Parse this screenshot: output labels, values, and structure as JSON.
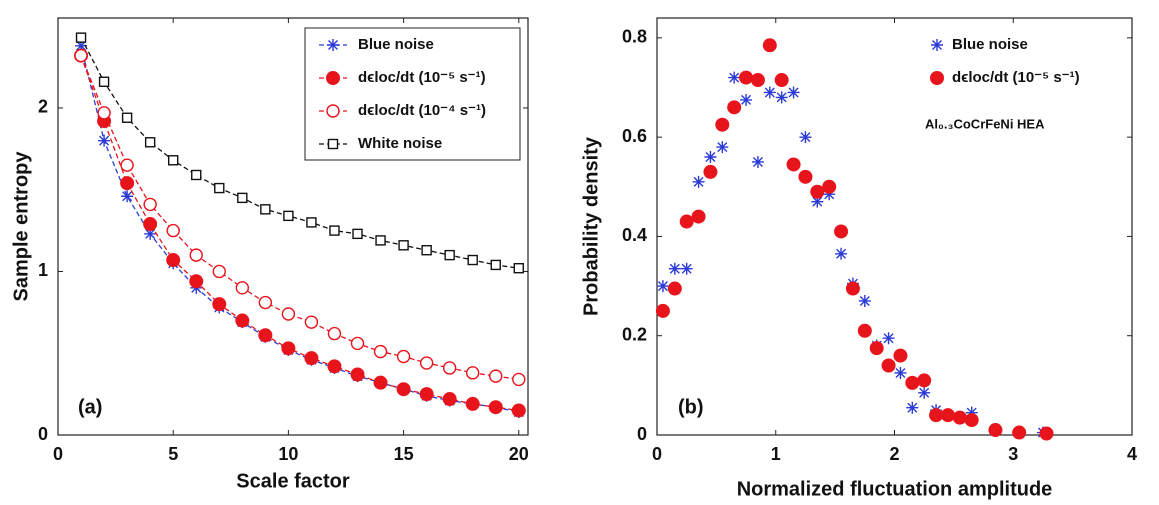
{
  "chart_data": [
    {
      "type": "line",
      "xlabel": "Scale factor",
      "ylabel": "Sample entropy",
      "panel_label": "(a)",
      "x": [
        1,
        2,
        3,
        4,
        5,
        6,
        7,
        8,
        9,
        10,
        11,
        12,
        13,
        14,
        15,
        16,
        17,
        18,
        19,
        20
      ],
      "xlim": [
        0,
        20.4
      ],
      "ylim": [
        0,
        2.55
      ],
      "xticks": [
        0,
        5,
        10,
        15,
        20
      ],
      "yticks": [
        0,
        1,
        2
      ],
      "legend": "upper right",
      "series": [
        {
          "name": "Blue noise",
          "color": "#2b3bd6",
          "marker": "star",
          "values": [
            2.38,
            1.8,
            1.46,
            1.23,
            1.05,
            0.9,
            0.78,
            0.69,
            0.6,
            0.52,
            0.46,
            0.41,
            0.36,
            0.32,
            0.28,
            0.24,
            0.21,
            0.19,
            0.17,
            0.14
          ]
        },
        {
          "name": "dϵloc/dt (10⁻⁵ s⁻¹)",
          "color": "#e8141c",
          "marker": "filled-circle",
          "values": [
            2.32,
            1.92,
            1.54,
            1.29,
            1.07,
            0.94,
            0.8,
            0.7,
            0.61,
            0.53,
            0.47,
            0.42,
            0.37,
            0.32,
            0.28,
            0.25,
            0.22,
            0.19,
            0.17,
            0.15
          ]
        },
        {
          "name": "dϵloc/dt (10⁻⁴ s⁻¹)",
          "color": "#e8141c",
          "marker": "open-circle",
          "values": [
            2.32,
            1.97,
            1.65,
            1.41,
            1.25,
            1.1,
            1.0,
            0.9,
            0.81,
            0.74,
            0.69,
            0.62,
            0.56,
            0.51,
            0.48,
            0.44,
            0.41,
            0.38,
            0.36,
            0.34
          ]
        },
        {
          "name": "White noise",
          "color": "#111111",
          "marker": "square",
          "values": [
            2.43,
            2.16,
            1.94,
            1.79,
            1.68,
            1.59,
            1.51,
            1.45,
            1.38,
            1.34,
            1.3,
            1.25,
            1.23,
            1.19,
            1.16,
            1.13,
            1.1,
            1.07,
            1.04,
            1.02
          ]
        }
      ]
    },
    {
      "type": "scatter",
      "xlabel": "Normalized fluctuation amplitude",
      "ylabel": "Probability density",
      "panel_label": "(b)",
      "annotation": "Al₀.₃CoCrFeNi HEA",
      "xlim": [
        0,
        4
      ],
      "ylim": [
        0,
        0.84
      ],
      "xticks": [
        0,
        1,
        2,
        3,
        4
      ],
      "yticks": [
        0,
        0.2,
        0.4,
        0.6,
        0.8
      ],
      "legend": "upper right",
      "series": [
        {
          "name": "Blue noise",
          "color": "#2b3bd6",
          "marker": "star",
          "x": [
            0.05,
            0.15,
            0.25,
            0.35,
            0.45,
            0.55,
            0.65,
            0.75,
            0.85,
            0.95,
            1.05,
            1.15,
            1.25,
            1.35,
            1.45,
            1.55,
            1.65,
            1.75,
            1.85,
            1.95,
            2.05,
            2.15,
            2.25,
            2.35,
            2.45,
            2.55,
            2.65,
            2.85,
            3.05,
            3.25
          ],
          "values": [
            0.3,
            0.335,
            0.335,
            0.51,
            0.56,
            0.58,
            0.72,
            0.675,
            0.55,
            0.69,
            0.68,
            0.69,
            0.6,
            0.47,
            0.485,
            0.365,
            0.305,
            0.27,
            0.18,
            0.195,
            0.125,
            0.055,
            0.085,
            0.05,
            0.04,
            0.035,
            0.045,
            0.01,
            0.005,
            0.005
          ]
        },
        {
          "name": "dϵloc/dt (10⁻⁵ s⁻¹)",
          "color": "#e8141c",
          "marker": "filled-circle",
          "x": [
            0.05,
            0.15,
            0.25,
            0.35,
            0.45,
            0.55,
            0.65,
            0.75,
            0.85,
            0.95,
            1.05,
            1.15,
            1.25,
            1.35,
            1.45,
            1.55,
            1.65,
            1.75,
            1.85,
            1.95,
            2.05,
            2.15,
            2.25,
            2.35,
            2.45,
            2.55,
            2.65,
            2.85,
            3.05,
            3.28
          ],
          "values": [
            0.25,
            0.295,
            0.43,
            0.44,
            0.53,
            0.625,
            0.66,
            0.72,
            0.715,
            0.785,
            0.715,
            0.545,
            0.52,
            0.49,
            0.5,
            0.41,
            0.295,
            0.21,
            0.175,
            0.14,
            0.16,
            0.105,
            0.11,
            0.04,
            0.04,
            0.035,
            0.03,
            0.01,
            0.005,
            0.003
          ]
        }
      ]
    }
  ]
}
